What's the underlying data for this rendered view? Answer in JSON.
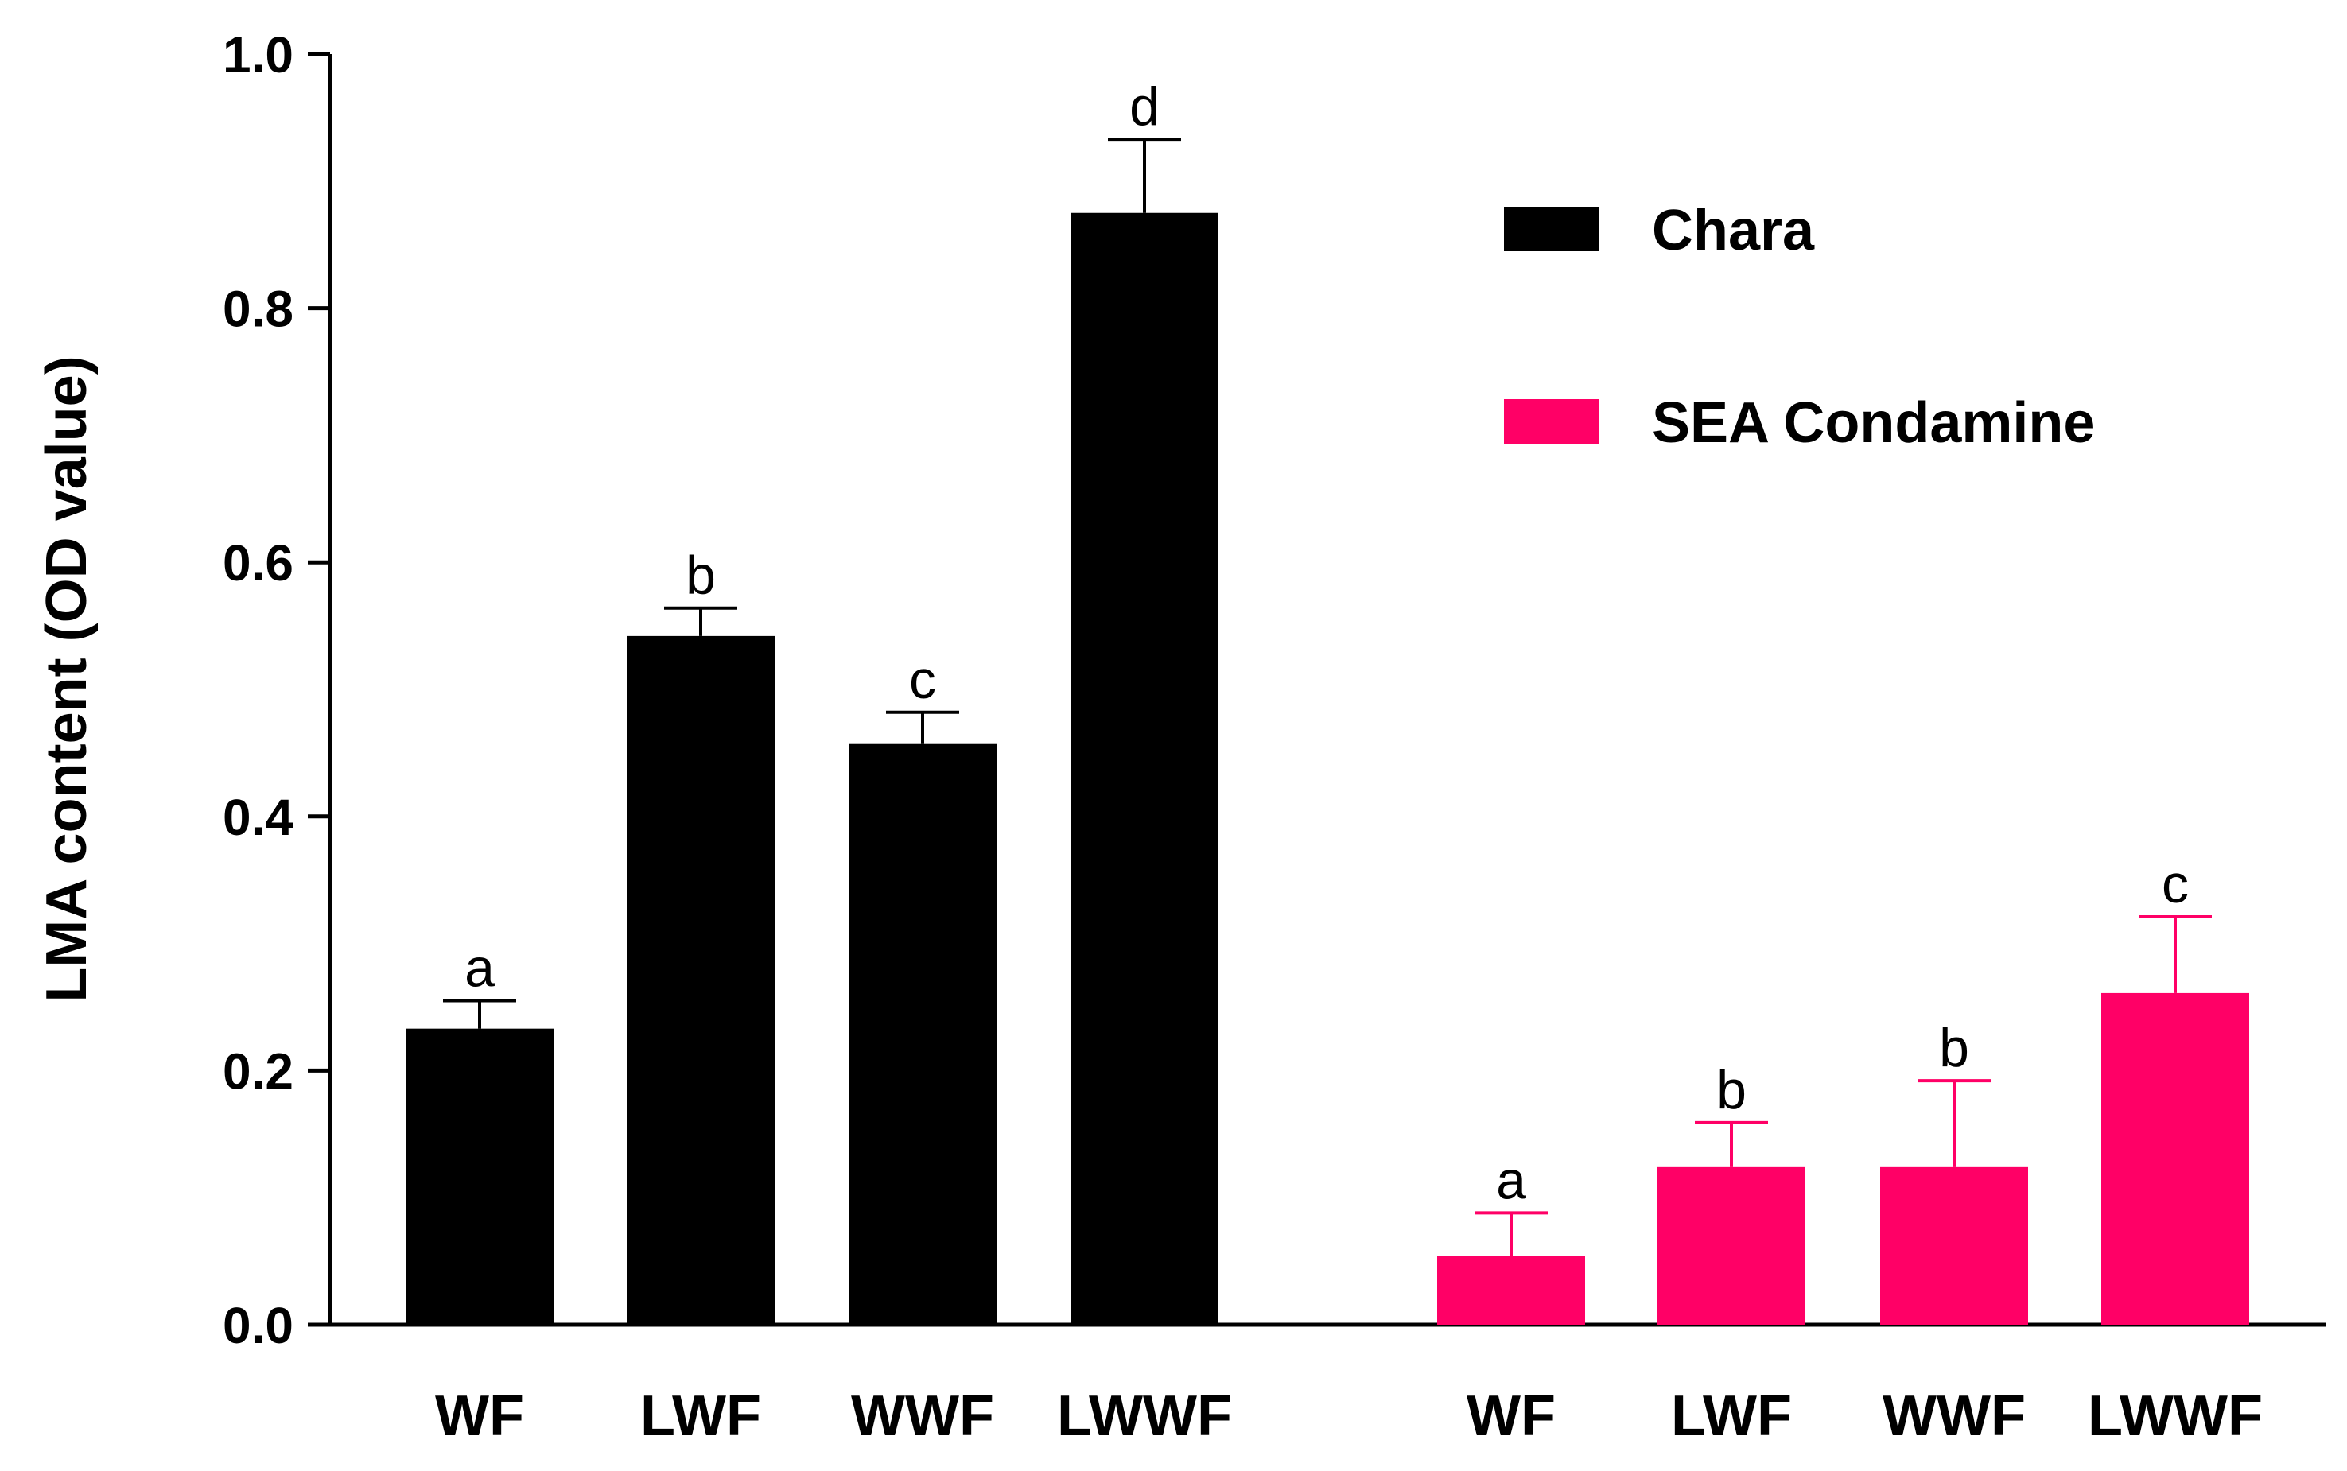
{
  "chart_data": {
    "type": "bar",
    "title": "",
    "xlabel": "",
    "ylabel": "LMA content (OD value)",
    "ylim": [
      0,
      1.0
    ],
    "yticks": [
      "0.0",
      "0.2",
      "0.4",
      "0.6",
      "0.8",
      "1.0"
    ],
    "ytick_values": [
      0,
      0.2,
      0.4,
      0.6,
      0.8,
      1.0
    ],
    "grid": false,
    "legend_position": "top-right",
    "categories": [
      "WF",
      "LWF",
      "WWF",
      "LWWF"
    ],
    "series": [
      {
        "name": "Chara",
        "color": "#000000",
        "values": [
          0.233,
          0.542,
          0.457,
          0.875
        ],
        "errors": [
          0.022,
          0.022,
          0.025,
          0.058
        ],
        "significance": [
          "a",
          "b",
          "c",
          "d"
        ]
      },
      {
        "name": "SEA Condamine",
        "color": "#ff0066",
        "values": [
          0.054,
          0.124,
          0.124,
          0.261
        ],
        "errors": [
          0.034,
          0.035,
          0.068,
          0.06
        ],
        "significance": [
          "a",
          "b",
          "b",
          "c"
        ]
      }
    ]
  }
}
